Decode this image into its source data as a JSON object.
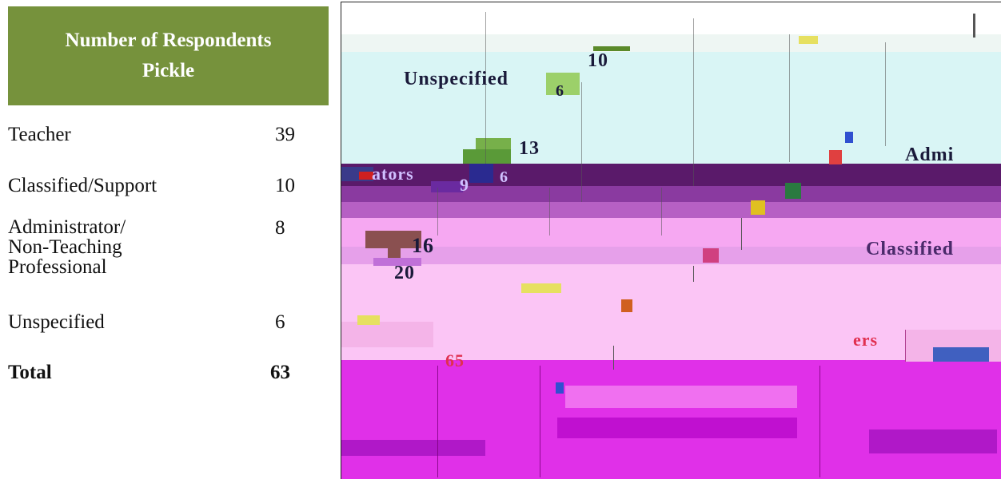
{
  "table": {
    "header_line1": "Number of Respondents",
    "header_line2": "Pickle",
    "rows": [
      {
        "label": "Teacher",
        "count": "39"
      },
      {
        "label": "Classified/Support",
        "count": "10"
      },
      {
        "label_lines": [
          "Administrator/",
          "Non-Teaching",
          "Professional"
        ],
        "count": "8"
      },
      {
        "label": "Unspecified",
        "count": "6"
      }
    ],
    "total": {
      "label": "Total",
      "count": "63"
    }
  },
  "image": {
    "fragments": {
      "unspecified": "Unspecified",
      "n10": "10",
      "n6a": "6",
      "n13": "13",
      "admin": "Admi",
      "rators": "ators",
      "n9": "9",
      "n6b": "6",
      "n16": "16",
      "classified": "Classified",
      "n20": "20",
      "teachers": "ers",
      "n65": "65"
    },
    "colors": {
      "cyan": "#d9f5f5",
      "green": "#9cd06a",
      "purple_dark": "#5a1a6a",
      "purple": "#8a3aa0",
      "lilac": "#d07ad8",
      "pink": "#f6a8f2",
      "pink_light": "#fbc5f5",
      "magenta": "#e030e8",
      "magenta_dark": "#c010d0"
    }
  }
}
